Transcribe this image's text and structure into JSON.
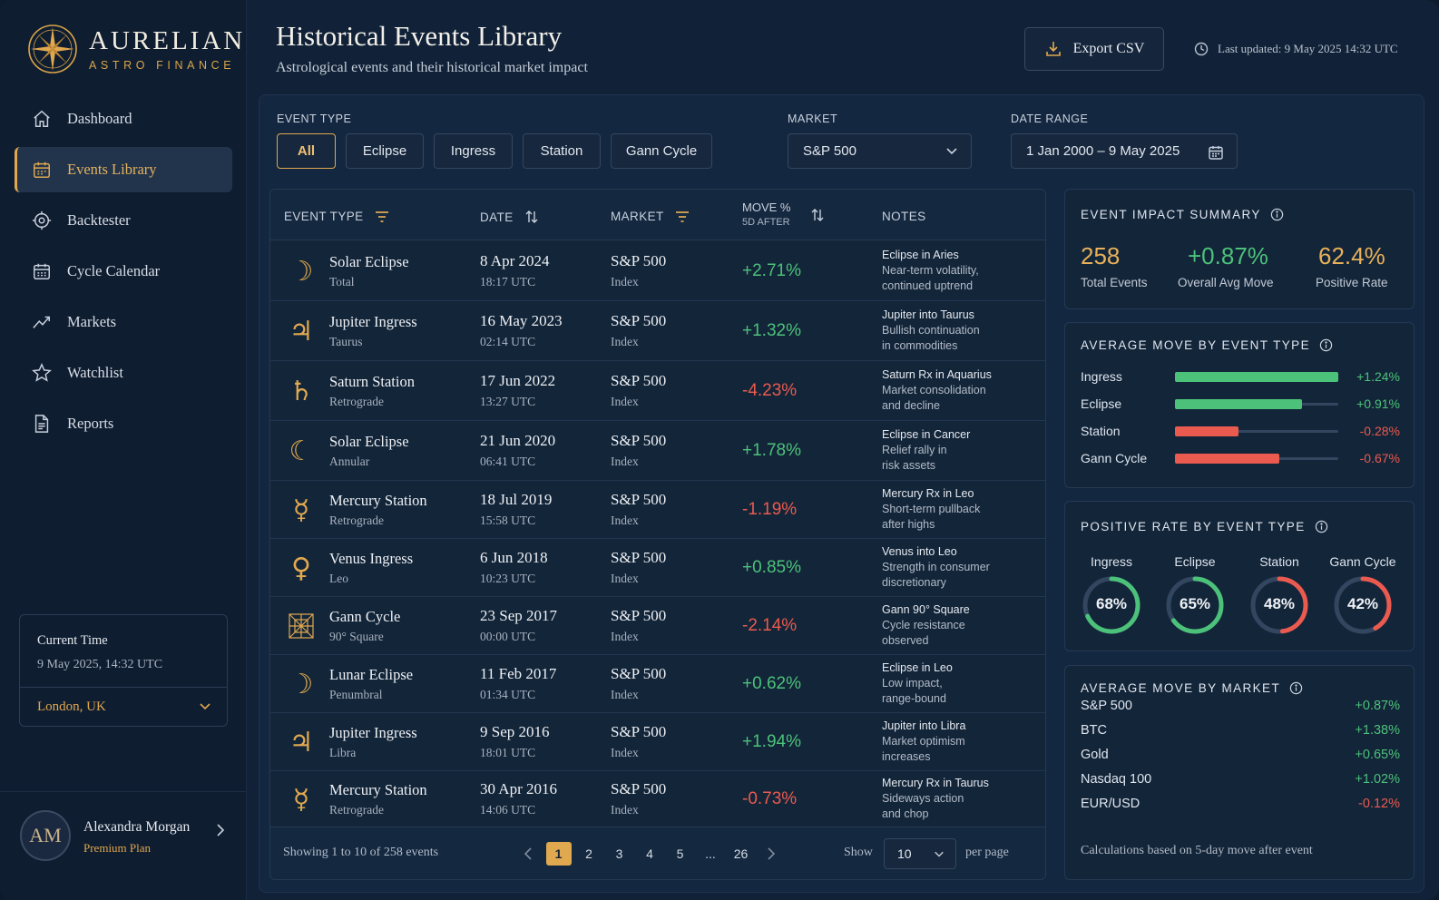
{
  "brand": {
    "name": "AURELIAN",
    "tagline": "ASTRO FINANCE"
  },
  "sidebar": {
    "items": [
      {
        "label": "Dashboard",
        "icon": "home-icon"
      },
      {
        "label": "Events Library",
        "icon": "calendar-icon",
        "active": true
      },
      {
        "label": "Backtester",
        "icon": "target-icon"
      },
      {
        "label": "Cycle Calendar",
        "icon": "calendar-grid-icon"
      },
      {
        "label": "Markets",
        "icon": "trend-line-icon"
      },
      {
        "label": "Watchlist",
        "icon": "star-icon"
      },
      {
        "label": "Reports",
        "icon": "document-icon"
      }
    ],
    "time_card": {
      "label": "Current Time",
      "value": "9 May 2025, 14:32 UTC",
      "location": "London, UK"
    },
    "user": {
      "initials": "AM",
      "name": "Alexandra Morgan",
      "plan": "Premium Plan"
    }
  },
  "header": {
    "title": "Historical Events Library",
    "subtitle": "Astrological events and their historical market impact",
    "export_label": "Export CSV",
    "last_updated": "Last updated: 9 May 2025 14:32 UTC"
  },
  "filters": {
    "event_type_label": "EVENT TYPE",
    "chips": [
      "All",
      "Eclipse",
      "Ingress",
      "Station",
      "Gann Cycle"
    ],
    "active_chip": "All",
    "market_label": "MARKET",
    "market_value": "S&P 500",
    "date_label": "DATE RANGE",
    "date_value": "1 Jan 2000 – 9 May 2025"
  },
  "table": {
    "headers": {
      "event_type": "EVENT TYPE",
      "date": "DATE",
      "market": "MARKET",
      "move": "MOVE %",
      "move_sub": "5D AFTER",
      "notes": "NOTES"
    },
    "rows": [
      {
        "symbol": "☽",
        "name": "Solar Eclipse",
        "sub": "Total",
        "date": "8 Apr 2024",
        "time": "18:17 UTC",
        "market": "S&P 500",
        "market_sub": "Index",
        "move": "+2.71%",
        "positive": true,
        "notes": [
          "Eclipse in Aries",
          "Near-term volatility,",
          "continued uptrend"
        ]
      },
      {
        "symbol": "♃",
        "name": "Jupiter Ingress",
        "sub": "Taurus",
        "date": "16 May 2023",
        "time": "02:14 UTC",
        "market": "S&P 500",
        "market_sub": "Index",
        "move": "+1.32%",
        "positive": true,
        "notes": [
          "Jupiter into Taurus",
          "Bullish continuation",
          "in commodities"
        ]
      },
      {
        "symbol": "♄",
        "name": "Saturn Station",
        "sub": "Retrograde",
        "date": "17 Jun 2022",
        "time": "13:27 UTC",
        "market": "S&P 500",
        "market_sub": "Index",
        "move": "-4.23%",
        "positive": false,
        "notes": [
          "Saturn Rx in Aquarius",
          "Market consolidation",
          "and decline"
        ]
      },
      {
        "symbol": "☾",
        "name": "Solar Eclipse",
        "sub": "Annular",
        "date": "21 Jun 2020",
        "time": "06:41 UTC",
        "market": "S&P 500",
        "market_sub": "Index",
        "move": "+1.78%",
        "positive": true,
        "notes": [
          "Eclipse in Cancer",
          "Relief rally in",
          "risk assets"
        ]
      },
      {
        "symbol": "☿",
        "name": "Mercury Station",
        "sub": "Retrograde",
        "date": "18 Jul 2019",
        "time": "15:58 UTC",
        "market": "S&P 500",
        "market_sub": "Index",
        "move": "-1.19%",
        "positive": false,
        "notes": [
          "Mercury Rx in Leo",
          "Short-term pullback",
          "after highs"
        ]
      },
      {
        "symbol": "♀",
        "name": "Venus Ingress",
        "sub": "Leo",
        "date": "6 Jun 2018",
        "time": "10:23 UTC",
        "market": "S&P 500",
        "market_sub": "Index",
        "move": "+0.85%",
        "positive": true,
        "notes": [
          "Venus into Leo",
          "Strength in consumer",
          "discretionary"
        ]
      },
      {
        "symbol": "gann",
        "name": "Gann Cycle",
        "sub": "90° Square",
        "date": "23 Sep 2017",
        "time": "00:00 UTC",
        "market": "S&P 500",
        "market_sub": "Index",
        "move": "-2.14%",
        "positive": false,
        "notes": [
          "Gann 90° Square",
          "Cycle resistance",
          "observed"
        ]
      },
      {
        "symbol": "☽",
        "name": "Lunar Eclipse",
        "sub": "Penumbral",
        "date": "11 Feb 2017",
        "time": "01:34 UTC",
        "market": "S&P 500",
        "market_sub": "Index",
        "move": "+0.62%",
        "positive": true,
        "notes": [
          "Eclipse in Leo",
          "Low impact,",
          "range-bound"
        ]
      },
      {
        "symbol": "♃",
        "name": "Jupiter Ingress",
        "sub": "Libra",
        "date": "9 Sep 2016",
        "time": "18:01 UTC",
        "market": "S&P 500",
        "market_sub": "Index",
        "move": "+1.94%",
        "positive": true,
        "notes": [
          "Jupiter into Libra",
          "Market optimism",
          "increases"
        ]
      },
      {
        "symbol": "☿",
        "name": "Mercury Station",
        "sub": "Retrograde",
        "date": "30 Apr 2016",
        "time": "14:06 UTC",
        "market": "S&P 500",
        "market_sub": "Index",
        "move": "-0.73%",
        "positive": false,
        "notes": [
          "Mercury Rx in Taurus",
          "Sideways action",
          "and chop"
        ]
      }
    ],
    "footer": {
      "showing": "Showing 1 to 10 of 258 events",
      "pages": [
        "1",
        "2",
        "3",
        "4",
        "5",
        "...",
        "26"
      ],
      "active_page": "1",
      "show_label": "Show",
      "per_page_value": "10",
      "per_page_label": "per page"
    }
  },
  "summary": {
    "title": "EVENT IMPACT SUMMARY",
    "total_events": "258",
    "total_events_label": "Total Events",
    "avg_move": "+0.87%",
    "avg_move_label": "Overall Avg Move",
    "positive_rate": "62.4%",
    "positive_rate_label": "Positive Rate"
  },
  "avg_by_type": {
    "title": "AVERAGE MOVE BY EVENT TYPE",
    "items": [
      {
        "label": "Ingress",
        "value": "+1.24%",
        "fraction": 1.0,
        "positive": true
      },
      {
        "label": "Eclipse",
        "value": "+0.91%",
        "fraction": 0.78,
        "positive": true
      },
      {
        "label": "Station",
        "value": "-0.28%",
        "fraction": 0.39,
        "positive": false
      },
      {
        "label": "Gann Cycle",
        "value": "-0.67%",
        "fraction": 0.64,
        "positive": false
      }
    ]
  },
  "positive_by_type": {
    "title": "POSITIVE RATE BY EVENT TYPE",
    "items": [
      {
        "label": "Ingress",
        "value": "68%",
        "fraction": 0.68,
        "color": "#4cc17a"
      },
      {
        "label": "Eclipse",
        "value": "65%",
        "fraction": 0.65,
        "color": "#4cc17a"
      },
      {
        "label": "Station",
        "value": "48%",
        "fraction": 0.48,
        "color": "#ea5a4f"
      },
      {
        "label": "Gann Cycle",
        "value": "42%",
        "fraction": 0.42,
        "color": "#ea5a4f"
      }
    ]
  },
  "avg_by_market": {
    "title": "AVERAGE MOVE BY MARKET",
    "items": [
      {
        "label": "S&P 500",
        "value": "+0.87%",
        "positive": true
      },
      {
        "label": "BTC",
        "value": "+1.38%",
        "positive": true
      },
      {
        "label": "Gold",
        "value": "+0.65%",
        "positive": true
      },
      {
        "label": "Nasdaq 100",
        "value": "+1.02%",
        "positive": true
      },
      {
        "label": "EUR/USD",
        "value": "-0.12%",
        "positive": false
      }
    ],
    "note": "Calculations based on 5-day move after event"
  },
  "colors": {
    "accent": "#e0a84f",
    "positive": "#4cc17a",
    "negative": "#ea5a4f",
    "background": "#112238"
  }
}
